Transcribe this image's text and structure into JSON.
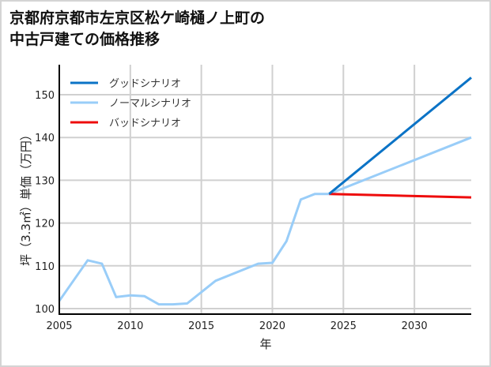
{
  "title": {
    "line1": "京都府京都市左京区松ケ崎樋ノ上町の",
    "line2": "中古戸建ての価格推移"
  },
  "colors": {
    "good": "#0b73c6",
    "normal": "#99cdf8",
    "bad": "#ee0c0c",
    "grid": "#d0d0d0",
    "frame": "#d4d4d4"
  },
  "chart_data": {
    "type": "line",
    "title": "京都府京都市左京区松ケ崎樋ノ上町の中古戸建ての価格推移",
    "xlabel": "年",
    "ylabel": "坪（3.3㎡）単価（万円）",
    "xlim": [
      2005,
      2034
    ],
    "ylim": [
      98.5,
      156.5
    ],
    "xticks": [
      2005,
      2010,
      2015,
      2020,
      2025,
      2030
    ],
    "yticks": [
      100,
      110,
      120,
      130,
      140,
      150
    ],
    "grid": true,
    "legend_position": "upper left",
    "series": [
      {
        "name": "グッドシナリオ",
        "color": "#0b73c6",
        "x": [
          2024,
          2034
        ],
        "y": [
          126.8,
          154.0
        ]
      },
      {
        "name": "ノーマルシナリオ",
        "color": "#99cdf8",
        "x": [
          2005,
          2007,
          2008,
          2009,
          2010,
          2011,
          2012,
          2013,
          2014,
          2016,
          2019,
          2020,
          2021,
          2022,
          2023,
          2024,
          2034
        ],
        "y": [
          101.8,
          111.3,
          110.5,
          102.7,
          103.1,
          102.9,
          101.0,
          101.0,
          101.2,
          106.5,
          110.5,
          110.7,
          115.8,
          125.5,
          126.8,
          126.8,
          140.0
        ]
      },
      {
        "name": "バッドシナリオ",
        "color": "#ee0c0c",
        "x": [
          2024,
          2034
        ],
        "y": [
          126.8,
          126.0
        ]
      }
    ]
  }
}
